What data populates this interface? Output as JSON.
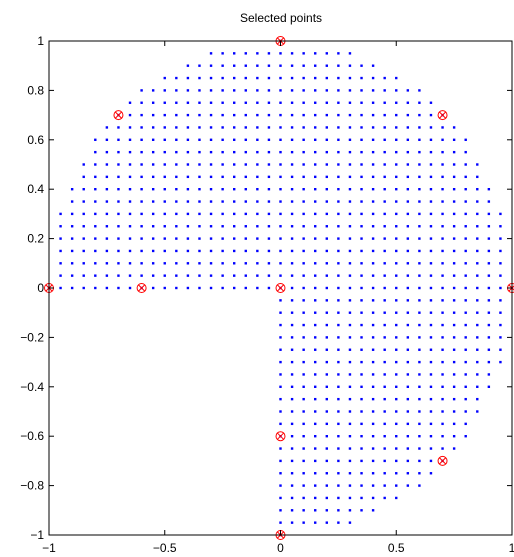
{
  "colors": {
    "background": "#ffffff",
    "axes": "#000000",
    "grid_points": "#0000ff",
    "selected_points": "#ff0000"
  },
  "chart_data": {
    "type": "scatter",
    "title": "Selected points",
    "xlabel": "",
    "ylabel": "",
    "xlim": [
      -1,
      1
    ],
    "ylim": [
      -1,
      1
    ],
    "grid": false,
    "legend": "none",
    "xticks": [
      -1,
      -0.5,
      0,
      0.5,
      1
    ],
    "xtick_labels": [
      "−1",
      "−0.5",
      "0",
      "0.5",
      "1"
    ],
    "yticks": [
      -1,
      -0.8,
      -0.6,
      -0.4,
      -0.2,
      0,
      0.2,
      0.4,
      0.6,
      0.8,
      1
    ],
    "ytick_labels": [
      "−1",
      "−0.8",
      "−0.6",
      "−0.4",
      "−0.2",
      "0",
      "0.2",
      "0.4",
      "0.6",
      "0.8",
      "1"
    ],
    "series": [
      {
        "marker": "dot",
        "color": "#0000ff",
        "description_of_region": "grid points with spacing 0.05 inside the unit disk, excluding the lower-left quadrant (x<0, y<0)",
        "spacing": 0.05,
        "region": "unit disk minus open lower-left quadrant"
      },
      {
        "marker": "circled-x",
        "color": "#ff0000",
        "x": [
          0,
          -0.7,
          0.7,
          -1,
          -0.6,
          0,
          1,
          0,
          0.7,
          0
        ],
        "y": [
          1,
          0.7,
          0.7,
          0,
          0,
          0,
          0,
          -0.6,
          -0.7,
          -1
        ]
      }
    ]
  }
}
